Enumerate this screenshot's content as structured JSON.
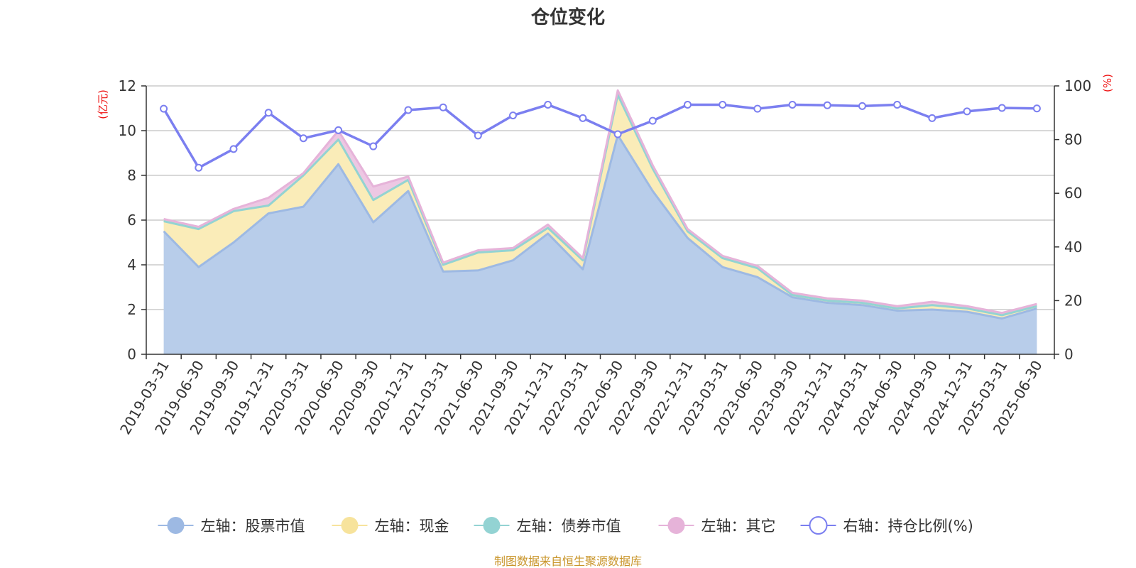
{
  "chart_data": {
    "type": "area",
    "title": "仓位变化",
    "categories": [
      "2019-03-31",
      "2019-06-30",
      "2019-09-30",
      "2019-12-31",
      "2020-03-31",
      "2020-06-30",
      "2020-09-30",
      "2020-12-31",
      "2021-03-31",
      "2021-06-30",
      "2021-09-30",
      "2021-12-31",
      "2022-03-31",
      "2022-06-30",
      "2022-09-30",
      "2022-12-31",
      "2023-03-31",
      "2023-06-30",
      "2023-09-30",
      "2023-12-31",
      "2024-03-31",
      "2024-06-30",
      "2024-09-30",
      "2024-12-31",
      "2025-03-31",
      "2025-06-30"
    ],
    "y_left": {
      "unit": "(亿元)",
      "ylim": [
        0,
        12
      ],
      "ticks": [
        0,
        2,
        4,
        6,
        8,
        10,
        12
      ]
    },
    "y_right": {
      "unit": "(%)",
      "ylim": [
        0,
        100
      ],
      "ticks": [
        0,
        20,
        40,
        60,
        80,
        100
      ]
    },
    "series": [
      {
        "name": "左轴：股票市值",
        "axis": "left",
        "color": "#9db9e3",
        "fill": "#b8cdea",
        "values": [
          5.5,
          3.9,
          5.0,
          6.3,
          6.6,
          8.5,
          5.9,
          7.3,
          3.7,
          3.75,
          4.2,
          5.4,
          3.8,
          9.8,
          7.3,
          5.2,
          3.9,
          3.45,
          2.55,
          2.3,
          2.2,
          1.95,
          2.0,
          1.9,
          1.6,
          2.05
        ]
      },
      {
        "name": "左轴：现金",
        "axis": "left",
        "color": "#f7e39c",
        "fill": "#faecb8",
        "values": [
          0.45,
          1.7,
          1.4,
          0.35,
          1.4,
          1.1,
          1.0,
          0.5,
          0.3,
          0.8,
          0.45,
          0.25,
          0.4,
          1.8,
          1.0,
          0.3,
          0.4,
          0.4,
          0.1,
          0.1,
          0.1,
          0.1,
          0.2,
          0.15,
          0.15,
          0.1
        ]
      },
      {
        "name": "左轴：债券市值",
        "axis": "left",
        "color": "#93d3d3",
        "fill": "#b5e1e1",
        "values": [
          0,
          0,
          0,
          0,
          0,
          0,
          0,
          0,
          0,
          0,
          0,
          0,
          0,
          0,
          0,
          0,
          0,
          0,
          0,
          0,
          0,
          0,
          0,
          0,
          0,
          0
        ]
      },
      {
        "name": "左轴：其它",
        "axis": "left",
        "color": "#e6b3d9",
        "fill": "#edc7e3",
        "values": [
          0.1,
          0.1,
          0.1,
          0.35,
          0.1,
          0.4,
          0.6,
          0.15,
          0.1,
          0.1,
          0.1,
          0.15,
          0.1,
          0.2,
          0.15,
          0.1,
          0.1,
          0.1,
          0.1,
          0.1,
          0.1,
          0.1,
          0.15,
          0.1,
          0.1,
          0.1
        ]
      },
      {
        "name": "右轴：持仓比例(%)",
        "axis": "right",
        "color": "#7b7ff0",
        "values": [
          91.5,
          69.5,
          76.5,
          90,
          80.5,
          83.5,
          77.5,
          91,
          92,
          81.5,
          89,
          93,
          88,
          82,
          87,
          93,
          93,
          91.5,
          93,
          92.8,
          92.5,
          93,
          88,
          90.5,
          91.8,
          91.6
        ]
      }
    ],
    "grid": true,
    "legend_position": "bottom"
  },
  "source_note": "制图数据来自恒生聚源数据库"
}
